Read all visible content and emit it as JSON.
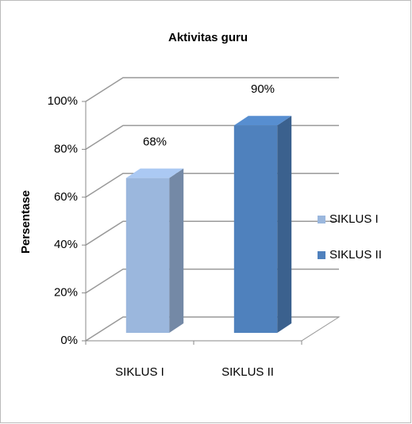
{
  "chart_data": {
    "type": "bar3d",
    "title": "Aktivitas guru",
    "y_label": "Persentase",
    "categories": [
      "SIKLUS I",
      "SIKLUS II"
    ],
    "values": [
      68,
      90
    ],
    "value_labels": [
      "68%",
      "90%"
    ],
    "colors": [
      "#9bb7dd",
      "#4f81bd"
    ],
    "ylim": [
      0,
      100
    ],
    "yticks": [
      {
        "value": 0,
        "label": "0%"
      },
      {
        "value": 20,
        "label": "20%"
      },
      {
        "value": 40,
        "label": "40%"
      },
      {
        "value": 60,
        "label": "60%"
      },
      {
        "value": 80,
        "label": "80%"
      },
      {
        "value": 100,
        "label": "100%"
      }
    ],
    "grid": true,
    "legend": "right"
  }
}
